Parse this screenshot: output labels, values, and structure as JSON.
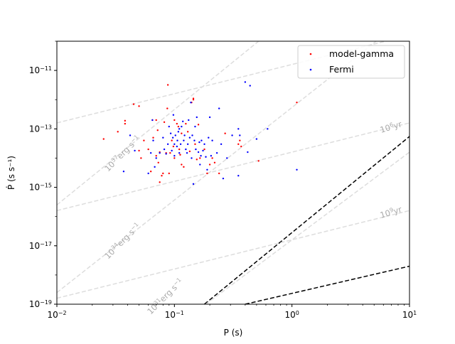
{
  "chart_data": {
    "type": "scatter",
    "title": "",
    "xlabel": "P (s)",
    "ylabel": "Ṗ (s s⁻¹)",
    "xscale": "log",
    "yscale": "log",
    "xlim": [
      0.01,
      10
    ],
    "ylim": [
      1e-19,
      1e-10
    ],
    "x_ticks": [
      {
        "value": 0.01,
        "base": "10",
        "exp": "−2"
      },
      {
        "value": 0.1,
        "base": "10",
        "exp": "−1"
      },
      {
        "value": 1,
        "base": "10",
        "exp": "0"
      },
      {
        "value": 10,
        "base": "10",
        "exp": "1"
      }
    ],
    "y_ticks": [
      {
        "value": 1e-19,
        "base": "10",
        "exp": "−19"
      },
      {
        "value": 1e-17,
        "base": "10",
        "exp": "−17"
      },
      {
        "value": 1e-15,
        "base": "10",
        "exp": "−15"
      },
      {
        "value": 1e-13,
        "base": "10",
        "exp": "−13"
      },
      {
        "value": 1e-11,
        "base": "10",
        "exp": "−11"
      }
    ],
    "grid": false,
    "legend_position": "top-right",
    "series": [
      {
        "name": "model-gamma",
        "color": "#ff0000",
        "points": [
          [
            0.025,
            4.5e-14
          ],
          [
            0.033,
            8e-14
          ],
          [
            0.038,
            1.5e-13
          ],
          [
            0.038,
            1.9e-13
          ],
          [
            0.045,
            7e-13
          ],
          [
            0.05,
            6e-13
          ],
          [
            0.05,
            1.8e-14
          ],
          [
            0.052,
            1e-14
          ],
          [
            0.055,
            4e-14
          ],
          [
            0.06,
            2e-14
          ],
          [
            0.063,
            3.5e-15
          ],
          [
            0.065,
            2e-13
          ],
          [
            0.066,
            5e-14
          ],
          [
            0.07,
            2e-13
          ],
          [
            0.07,
            1.2e-14
          ],
          [
            0.072,
            9e-14
          ],
          [
            0.073,
            7e-15
          ],
          [
            0.075,
            1.6e-14
          ],
          [
            0.075,
            1.5e-15
          ],
          [
            0.078,
            2.5e-15
          ],
          [
            0.08,
            3e-15
          ],
          [
            0.082,
            1.7e-13
          ],
          [
            0.085,
            1.5e-14
          ],
          [
            0.087,
            5e-13
          ],
          [
            0.088,
            3.2e-12
          ],
          [
            0.09,
            3e-15
          ],
          [
            0.092,
            1.5e-14
          ],
          [
            0.095,
            4e-14
          ],
          [
            0.098,
            2.5e-14
          ],
          [
            0.1,
            2e-13
          ],
          [
            0.1,
            1e-14
          ],
          [
            0.105,
            1.5e-13
          ],
          [
            0.108,
            1.2e-13
          ],
          [
            0.11,
            2e-14
          ],
          [
            0.112,
            1.3e-14
          ],
          [
            0.115,
            6e-15
          ],
          [
            0.115,
            7e-14
          ],
          [
            0.12,
            5e-15
          ],
          [
            0.125,
            1.5e-13
          ],
          [
            0.13,
            8e-14
          ],
          [
            0.135,
            1.7e-14
          ],
          [
            0.14,
            8e-13
          ],
          [
            0.145,
            1.1e-12
          ],
          [
            0.145,
            1e-12
          ],
          [
            0.15,
            3e-14
          ],
          [
            0.155,
            9e-15
          ],
          [
            0.16,
            1.4e-13
          ],
          [
            0.165,
            1e-14
          ],
          [
            0.18,
            2e-14
          ],
          [
            0.19,
            3e-15
          ],
          [
            0.2,
            6e-15
          ],
          [
            0.21,
            1e-14
          ],
          [
            0.22,
            7e-15
          ],
          [
            0.24,
            3e-15
          ],
          [
            0.27,
            7e-14
          ],
          [
            0.35,
            3e-14
          ],
          [
            0.36,
            4e-14
          ],
          [
            0.37,
            2.5e-14
          ],
          [
            0.52,
            8e-15
          ],
          [
            1.1,
            8e-13
          ]
        ]
      },
      {
        "name": "Fermi",
        "color": "#0000ff",
        "points": [
          [
            0.037,
            3.5e-15
          ],
          [
            0.042,
            6e-14
          ],
          [
            0.046,
            1.8e-14
          ],
          [
            0.06,
            3e-15
          ],
          [
            0.063,
            1.5e-14
          ],
          [
            0.065,
            2e-13
          ],
          [
            0.066,
            4e-14
          ],
          [
            0.068,
            5e-15
          ],
          [
            0.07,
            1e-14
          ],
          [
            0.075,
            1.5e-14
          ],
          [
            0.08,
            5e-14
          ],
          [
            0.082,
            2e-14
          ],
          [
            0.085,
            1.4e-14
          ],
          [
            0.088,
            3e-14
          ],
          [
            0.09,
            1.2e-13
          ],
          [
            0.093,
            7e-14
          ],
          [
            0.095,
            1.8e-14
          ],
          [
            0.097,
            5e-14
          ],
          [
            0.098,
            3e-13
          ],
          [
            0.1,
            3e-14
          ],
          [
            0.1,
            1.2e-14
          ],
          [
            0.102,
            6e-14
          ],
          [
            0.105,
            2.5e-14
          ],
          [
            0.106,
            4e-14
          ],
          [
            0.108,
            8e-14
          ],
          [
            0.11,
            1e-13
          ],
          [
            0.11,
            1.5e-14
          ],
          [
            0.113,
            3e-14
          ],
          [
            0.115,
            1.2e-13
          ],
          [
            0.118,
            1.8e-13
          ],
          [
            0.12,
            4e-14
          ],
          [
            0.122,
            6e-14
          ],
          [
            0.125,
            2e-14
          ],
          [
            0.128,
            1.5e-14
          ],
          [
            0.13,
            3e-14
          ],
          [
            0.132,
            2e-13
          ],
          [
            0.135,
            5e-14
          ],
          [
            0.138,
            8e-13
          ],
          [
            0.14,
            1e-14
          ],
          [
            0.142,
            6e-14
          ],
          [
            0.145,
            1.3e-15
          ],
          [
            0.148,
            4e-14
          ],
          [
            0.15,
            1.2e-13
          ],
          [
            0.152,
            2e-14
          ],
          [
            0.155,
            2.5e-13
          ],
          [
            0.16,
            1.6e-14
          ],
          [
            0.163,
            3.5e-14
          ],
          [
            0.165,
            6e-15
          ],
          [
            0.168,
            1.2e-14
          ],
          [
            0.17,
            4e-14
          ],
          [
            0.175,
            1.8e-14
          ],
          [
            0.18,
            3e-14
          ],
          [
            0.185,
            1.1e-14
          ],
          [
            0.19,
            4e-15
          ],
          [
            0.195,
            5e-14
          ],
          [
            0.2,
            2.5e-13
          ],
          [
            0.205,
            1.2e-14
          ],
          [
            0.21,
            4e-14
          ],
          [
            0.23,
            1.5e-14
          ],
          [
            0.24,
            5e-13
          ],
          [
            0.25,
            3e-14
          ],
          [
            0.26,
            2e-15
          ],
          [
            0.28,
            1e-14
          ],
          [
            0.31,
            6e-14
          ],
          [
            0.35,
            2.5e-15
          ],
          [
            0.35,
            1e-13
          ],
          [
            0.36,
            6e-14
          ],
          [
            0.4,
            4e-12
          ],
          [
            0.42,
            1.6e-14
          ],
          [
            0.44,
            3e-12
          ],
          [
            0.5,
            4.5e-14
          ],
          [
            0.62,
            1e-13
          ],
          [
            1.1,
            4e-15
          ]
        ]
      }
    ],
    "reference_lines": [
      {
        "kind": "field",
        "label": "",
        "color": "#000000",
        "points": [
          [
            0.18,
            1e-19
          ],
          [
            10,
            5.5e-14
          ]
        ]
      },
      {
        "kind": "field",
        "label": "",
        "color": "#000000",
        "points": [
          [
            0.4,
            1e-19
          ],
          [
            10,
            2e-18
          ]
        ]
      },
      {
        "kind": "age",
        "label_base": "10",
        "label_exp": "6",
        "label_unit": "yr",
        "color": "#dddddd",
        "points": [
          [
            0.01,
            1.6e-16
          ],
          [
            10,
            1.6e-13
          ]
        ]
      },
      {
        "kind": "age",
        "label_base": "10",
        "label_exp": "9",
        "label_unit": "yr",
        "color": "#dddddd",
        "points": [
          [
            0.01,
            1.6e-19
          ],
          [
            10,
            1.6e-16
          ]
        ]
      },
      {
        "kind": "age",
        "label": "",
        "color": "#dddddd",
        "points": [
          [
            0.01,
            1.6e-13
          ],
          [
            10,
            1.6e-10
          ]
        ]
      },
      {
        "kind": "edot",
        "label_base": "10",
        "label_exp": "37",
        "label_unit": "erg s",
        "label_unit_exp": "−1",
        "color": "#dddddd",
        "points": [
          [
            0.01,
            2.5e-16
          ],
          [
            0.52,
            1e-10
          ]
        ]
      },
      {
        "kind": "edot",
        "label_base": "10",
        "label_exp": "34",
        "label_unit": "erg s",
        "label_unit_exp": "−1",
        "color": "#dddddd",
        "points": [
          [
            0.01,
            2.5e-19
          ],
          [
            5.2,
            1e-10
          ]
        ]
      },
      {
        "kind": "edot",
        "label_base": "10",
        "label_exp": "31",
        "label_unit": "erg s",
        "label_unit_exp": "−1",
        "color": "#dddddd",
        "points": [
          [
            0.185,
            1e-19
          ],
          [
            10,
            1.6e-14
          ]
        ]
      }
    ]
  }
}
